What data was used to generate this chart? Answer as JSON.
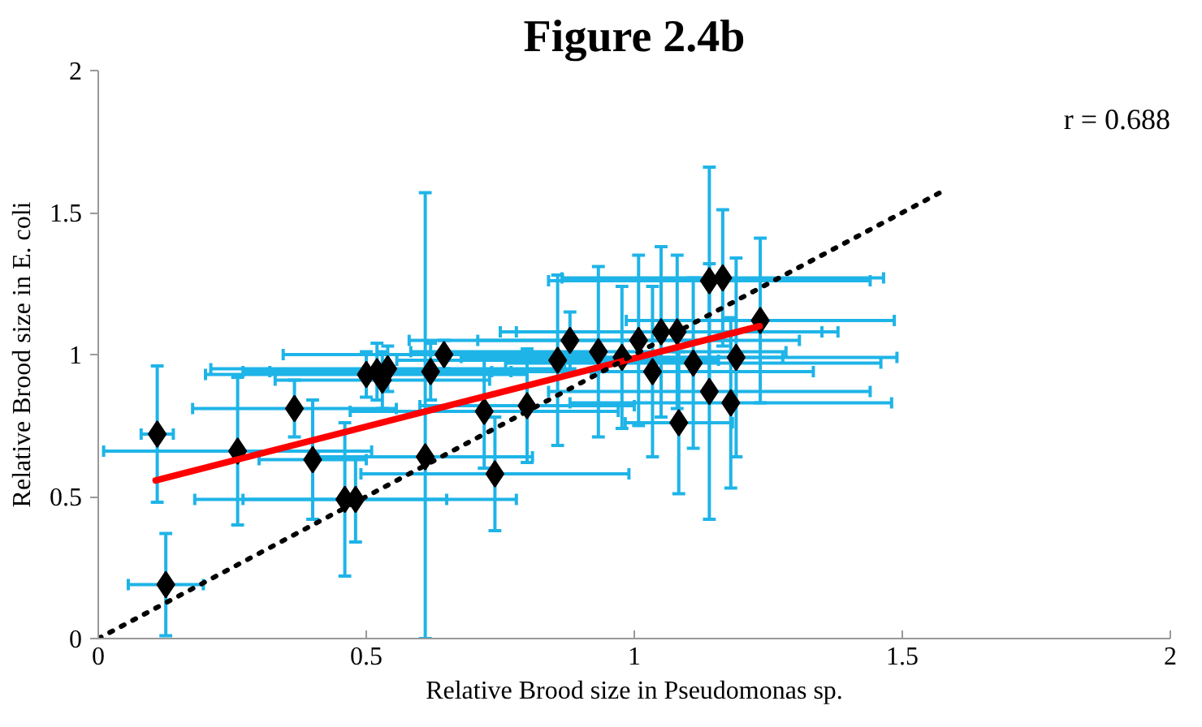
{
  "chart_data": {
    "type": "scatter",
    "title": "Figure 2.4b",
    "xlabel": "Relative Brood size in Pseudomonas sp.",
    "ylabel": "Relative Brood size in E. coli",
    "annotations": [
      "r = 0.688"
    ],
    "xlim": [
      0,
      2
    ],
    "ylim": [
      0,
      2
    ],
    "xticks": [
      0,
      0.5,
      1,
      1.5,
      2
    ],
    "yticks": [
      0,
      0.5,
      1,
      1.5,
      2
    ],
    "grid": false,
    "series": [
      {
        "color": "#000000",
        "marker": "diamond",
        "x": [
          0.11,
          0.26,
          0.366,
          0.4,
          0.46,
          0.48,
          0.126,
          0.5,
          0.52,
          0.54,
          0.53,
          0.61,
          0.62,
          0.645,
          0.72,
          0.8,
          0.74,
          0.857,
          0.88,
          0.933,
          0.977,
          1.008,
          1.034,
          1.05,
          1.08,
          1.11,
          1.083,
          1.14,
          1.18,
          1.19,
          1.235,
          1.14,
          1.165
        ],
        "values": [
          0.72,
          0.66,
          0.81,
          0.63,
          0.49,
          0.49,
          0.19,
          0.93,
          0.94,
          0.95,
          0.91,
          0.64,
          0.94,
          1.0,
          0.8,
          0.82,
          0.58,
          0.98,
          1.05,
          1.01,
          0.99,
          1.05,
          0.94,
          1.08,
          1.08,
          0.97,
          0.76,
          0.87,
          0.83,
          0.99,
          1.12,
          1.26,
          1.27
        ],
        "errors": [
          0.24,
          0.26,
          0.1,
          0.21,
          0.27,
          0.15,
          0.18,
          0.08,
          0.1,
          0.08,
          0.1,
          [
            0,
            1.57
          ],
          0.1,
          0.05,
          0.2,
          0.2,
          0.2,
          0.3,
          0.1,
          0.3,
          0.25,
          0.3,
          0.3,
          0.3,
          0.27,
          0.3,
          0.25,
          0.45,
          0.3,
          0.35,
          0.29,
          0.4,
          0.24
        ],
        "xerrors": [
          0.03,
          0.25,
          0.19,
          0.1,
          0.19,
          0.3,
          0.07,
          0.3,
          0.25,
          0.33,
          0.2,
          0.2,
          0.3,
          0.3,
          0.25,
          0.2,
          0.25,
          0.3,
          0.3,
          0.35,
          0.3,
          0.3,
          0.3,
          0.3,
          0.3,
          0.35,
          0.1,
          0.3,
          0.3,
          0.3,
          0.25,
          0.3,
          0.3
        ]
      },
      {
        "type": "line",
        "color": "#ff0000",
        "line_style": "solid",
        "x": [
          0.107,
          1.234
        ],
        "values": [
          0.557,
          1.1
        ]
      },
      {
        "type": "line",
        "color": "#000000",
        "line_style": "dotted",
        "x": [
          0,
          1.58
        ],
        "values": [
          0,
          1.58
        ]
      }
    ]
  }
}
